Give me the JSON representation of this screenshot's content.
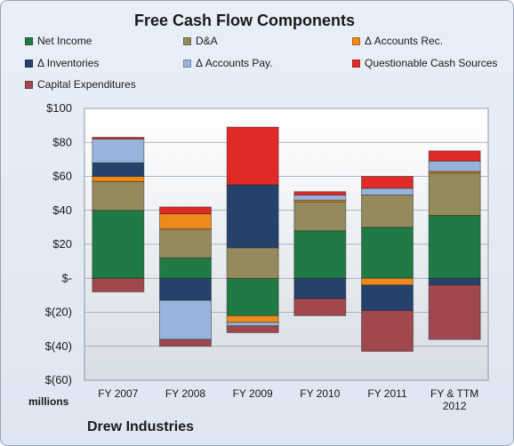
{
  "footer_label": "Drew Industries",
  "chart_data": {
    "type": "bar",
    "stacked": true,
    "title": "Free Cash Flow Components",
    "ylabel": "millions",
    "ylim": [
      -60,
      100
    ],
    "yticks": [
      100,
      80,
      60,
      40,
      20,
      0,
      -20,
      -40,
      -60
    ],
    "ytick_labels": [
      "$100",
      "$80",
      "$60",
      "$40",
      "$20",
      "$-",
      "$(20)",
      "$(40)",
      "$(60)"
    ],
    "grid": true,
    "legend_position": "top",
    "categories": [
      "FY 2007",
      "FY 2008",
      "FY 2009",
      "FY 2010",
      "FY 2011",
      "FY & TTM 2012"
    ],
    "series": [
      {
        "name": "Net Income",
        "color": "#1f7a45",
        "values": [
          40,
          12,
          -22,
          28,
          30,
          37
        ]
      },
      {
        "name": "D&A",
        "color": "#958a5b",
        "values": [
          17,
          17,
          18,
          17,
          19,
          25
        ]
      },
      {
        "name": "Δ Accounts Rec.",
        "color": "#ee8a1b",
        "values": [
          3,
          9,
          -4,
          1,
          -4,
          1
        ]
      },
      {
        "name": "Δ Inventories",
        "color": "#24426b",
        "values": [
          8,
          -13,
          37,
          -12,
          -15,
          -4
        ]
      },
      {
        "name": "Δ Accounts Pay.",
        "color": "#98b4dc",
        "values": [
          14,
          -23,
          -2,
          3,
          4,
          6
        ]
      },
      {
        "name": "Questionable Cash Sources",
        "color": "#e02a28",
        "values": [
          1,
          4,
          34,
          2,
          7,
          6
        ]
      },
      {
        "name": "Capital Expenditures",
        "color": "#a0484d",
        "values": [
          -8,
          -4,
          -4,
          -10,
          -24,
          -32
        ]
      }
    ]
  }
}
